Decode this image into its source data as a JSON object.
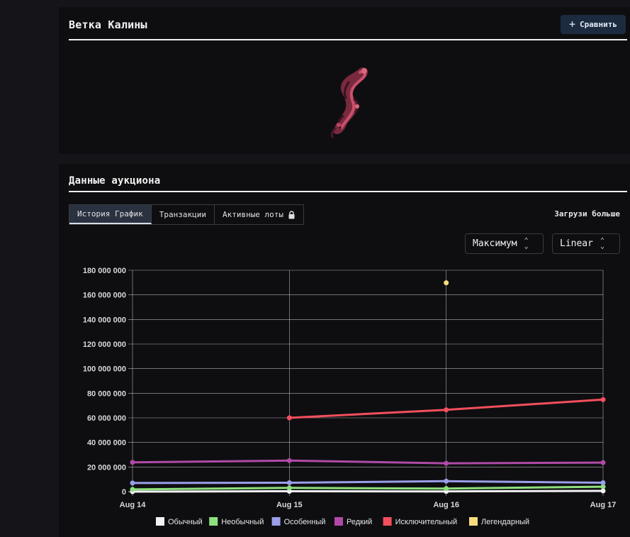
{
  "item": {
    "title": "Ветка Калины",
    "compare_label": "Сравнить"
  },
  "auction": {
    "title": "Данные аукциона",
    "tabs": [
      {
        "label": "История График",
        "active": true
      },
      {
        "label": "Транзакции",
        "active": false
      },
      {
        "label": "Активные лоты",
        "active": false,
        "locked": true
      }
    ],
    "load_more": "Загрузи больше",
    "range_select": "Максимум",
    "scale_select": "Linear"
  },
  "chart_data": {
    "type": "line",
    "x": [
      "Aug 14",
      "Aug 15",
      "Aug 16",
      "Aug 17"
    ],
    "ylim": [
      0,
      180000000
    ],
    "yticks": [
      0,
      20000000,
      40000000,
      60000000,
      80000000,
      100000000,
      120000000,
      140000000,
      160000000,
      180000000
    ],
    "ytick_labels": [
      "0",
      "20 000 000",
      "40 000 000",
      "60 000 000",
      "80 000 000",
      "100 000 000",
      "120 000 000",
      "140 000 000",
      "160 000 000",
      "180 000 000"
    ],
    "grid": true,
    "legend_position": "bottom",
    "series": [
      {
        "name": "Обычный",
        "color": "#f2f2f2",
        "values": [
          0,
          300000,
          200000,
          600000
        ]
      },
      {
        "name": "Необычный",
        "color": "#8ee07e",
        "values": [
          1800000,
          3000000,
          2500000,
          4000000
        ]
      },
      {
        "name": "Особенный",
        "color": "#9b9ee8",
        "values": [
          7000000,
          7200000,
          8500000,
          7200000
        ]
      },
      {
        "name": "Редкий",
        "color": "#b04aa6",
        "values": [
          23800000,
          25200000,
          23000000,
          23600000
        ]
      },
      {
        "name": "Исключительный",
        "color": "#f44f5c",
        "values": [
          null,
          60000000,
          66500000,
          74800000
        ]
      },
      {
        "name": "Легендарный",
        "color": "#f7dd7e",
        "values": [
          null,
          null,
          169800000,
          null
        ]
      }
    ]
  }
}
